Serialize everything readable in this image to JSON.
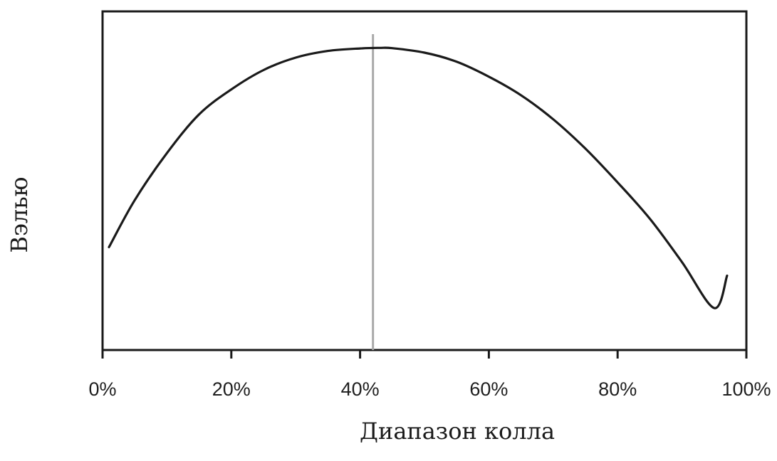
{
  "chart_data": {
    "type": "line",
    "title": "",
    "xlabel": "Диапазон колла",
    "ylabel": "Вэлью",
    "x_tick_labels": [
      "0%",
      "20%",
      "40%",
      "60%",
      "80%",
      "100%"
    ],
    "x_ticks": [
      0,
      20,
      40,
      60,
      80,
      100
    ],
    "xlim": [
      0,
      100
    ],
    "ylim": [
      0,
      100
    ],
    "y_ticks_shown": false,
    "grid": false,
    "series": [
      {
        "x": [
          1,
          5,
          10,
          15,
          20,
          25,
          30,
          35,
          40,
          43,
          45,
          50,
          55,
          60,
          65,
          70,
          75,
          80,
          85,
          90,
          95,
          97
        ],
        "y": [
          22,
          39,
          56,
          70,
          79,
          86,
          90.5,
          92.9,
          93.8,
          94,
          93.9,
          92.3,
          89,
          83.6,
          76.9,
          68.2,
          57.6,
          45.4,
          32.3,
          16.6,
          0,
          11.7
        ],
        "color": "#1a1a1a"
      }
    ],
    "vertical_marker": {
      "x": 42,
      "color": "#a8a8a8"
    }
  }
}
